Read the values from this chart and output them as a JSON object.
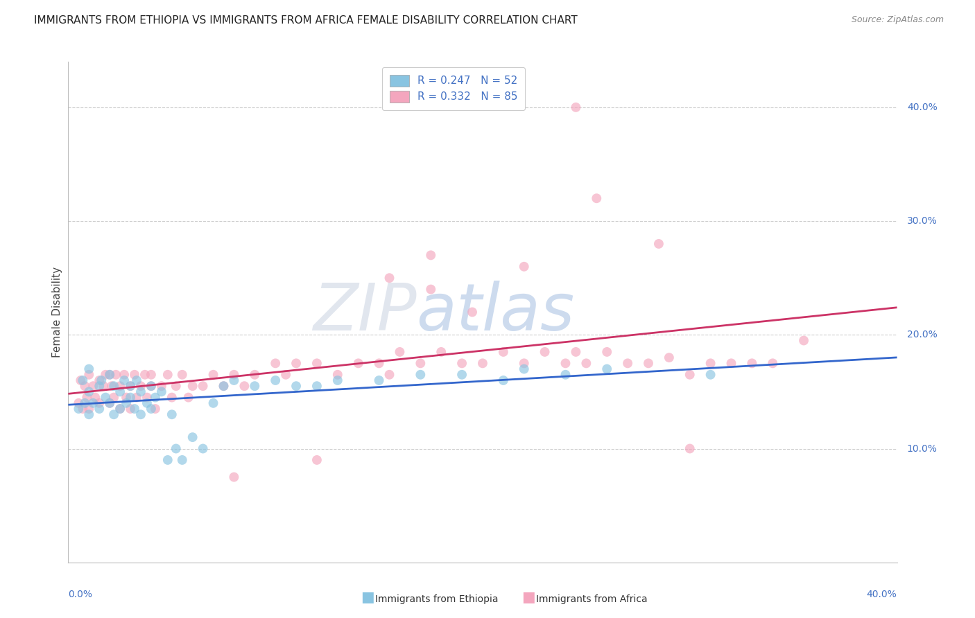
{
  "title": "IMMIGRANTS FROM ETHIOPIA VS IMMIGRANTS FROM AFRICA FEMALE DISABILITY CORRELATION CHART",
  "source": "Source: ZipAtlas.com",
  "ylabel": "Female Disability",
  "color_ethiopia": "#89c4e1",
  "color_africa": "#f4a6be",
  "color_line_ethiopia": "#3366cc",
  "color_line_africa": "#cc3366",
  "legend1_label": "R = 0.247   N = 52",
  "legend2_label": "R = 0.332   N = 85",
  "legend_bottom_label1": "Immigrants from Ethiopia",
  "legend_bottom_label2": "Immigrants from Africa",
  "xlim": [
    0.0,
    0.4
  ],
  "ylim": [
    0.0,
    0.44
  ],
  "ytick_values": [
    0.1,
    0.2,
    0.3,
    0.4
  ],
  "ytick_labels": [
    "10.0%",
    "20.0%",
    "30.0%",
    "40.0%"
  ],
  "grid_color": "#cccccc",
  "title_fontsize": 11,
  "source_fontsize": 9,
  "ethiopia_x": [
    0.005,
    0.007,
    0.008,
    0.01,
    0.01,
    0.01,
    0.012,
    0.015,
    0.015,
    0.016,
    0.018,
    0.02,
    0.02,
    0.022,
    0.022,
    0.025,
    0.025,
    0.027,
    0.028,
    0.03,
    0.03,
    0.032,
    0.033,
    0.035,
    0.035,
    0.038,
    0.04,
    0.04,
    0.042,
    0.045,
    0.048,
    0.05,
    0.052,
    0.055,
    0.06,
    0.065,
    0.07,
    0.075,
    0.08,
    0.09,
    0.1,
    0.11,
    0.12,
    0.13,
    0.15,
    0.17,
    0.19,
    0.21,
    0.22,
    0.24,
    0.26,
    0.31
  ],
  "ethiopia_y": [
    0.135,
    0.16,
    0.14,
    0.15,
    0.13,
    0.17,
    0.14,
    0.155,
    0.135,
    0.16,
    0.145,
    0.14,
    0.165,
    0.13,
    0.155,
    0.15,
    0.135,
    0.16,
    0.14,
    0.155,
    0.145,
    0.135,
    0.16,
    0.13,
    0.15,
    0.14,
    0.155,
    0.135,
    0.145,
    0.15,
    0.09,
    0.13,
    0.1,
    0.09,
    0.11,
    0.1,
    0.14,
    0.155,
    0.16,
    0.155,
    0.16,
    0.155,
    0.155,
    0.16,
    0.16,
    0.165,
    0.165,
    0.16,
    0.17,
    0.165,
    0.17,
    0.165
  ],
  "africa_x": [
    0.005,
    0.006,
    0.007,
    0.008,
    0.009,
    0.01,
    0.01,
    0.012,
    0.013,
    0.015,
    0.015,
    0.017,
    0.018,
    0.02,
    0.02,
    0.021,
    0.022,
    0.023,
    0.025,
    0.025,
    0.027,
    0.028,
    0.03,
    0.03,
    0.032,
    0.033,
    0.035,
    0.037,
    0.038,
    0.04,
    0.04,
    0.042,
    0.045,
    0.048,
    0.05,
    0.052,
    0.055,
    0.058,
    0.06,
    0.065,
    0.07,
    0.075,
    0.08,
    0.085,
    0.09,
    0.1,
    0.105,
    0.11,
    0.12,
    0.13,
    0.14,
    0.15,
    0.155,
    0.16,
    0.17,
    0.18,
    0.19,
    0.2,
    0.21,
    0.22,
    0.23,
    0.24,
    0.245,
    0.25,
    0.26,
    0.27,
    0.28,
    0.29,
    0.3,
    0.31,
    0.32,
    0.33,
    0.34,
    0.355,
    0.22,
    0.175,
    0.175,
    0.255,
    0.285,
    0.3,
    0.245,
    0.195,
    0.155,
    0.12,
    0.08
  ],
  "africa_y": [
    0.14,
    0.16,
    0.135,
    0.155,
    0.145,
    0.165,
    0.135,
    0.155,
    0.145,
    0.16,
    0.14,
    0.155,
    0.165,
    0.14,
    0.165,
    0.155,
    0.145,
    0.165,
    0.155,
    0.135,
    0.165,
    0.145,
    0.155,
    0.135,
    0.165,
    0.145,
    0.155,
    0.165,
    0.145,
    0.155,
    0.165,
    0.135,
    0.155,
    0.165,
    0.145,
    0.155,
    0.165,
    0.145,
    0.155,
    0.155,
    0.165,
    0.155,
    0.165,
    0.155,
    0.165,
    0.175,
    0.165,
    0.175,
    0.175,
    0.165,
    0.175,
    0.175,
    0.165,
    0.185,
    0.175,
    0.185,
    0.175,
    0.175,
    0.185,
    0.175,
    0.185,
    0.175,
    0.185,
    0.175,
    0.185,
    0.175,
    0.175,
    0.18,
    0.165,
    0.175,
    0.175,
    0.175,
    0.175,
    0.195,
    0.26,
    0.27,
    0.24,
    0.32,
    0.28,
    0.1,
    0.4,
    0.22,
    0.25,
    0.09,
    0.075
  ]
}
